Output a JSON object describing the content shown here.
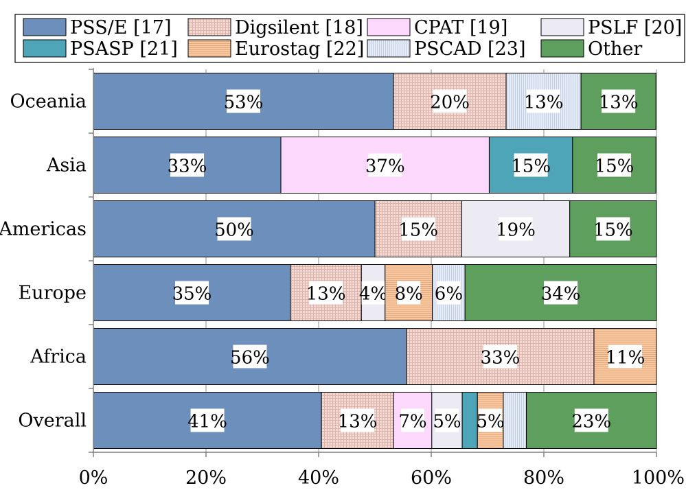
{
  "chart_data": {
    "type": "bar",
    "orientation": "horizontal",
    "stacked": true,
    "title": "",
    "xlabel": "",
    "ylabel": "",
    "xlim": [
      0,
      100
    ],
    "x_ticks": [
      "0%",
      "20%",
      "40%",
      "60%",
      "80%",
      "100%"
    ],
    "grid": "vertical",
    "legend_position": "top",
    "categories": [
      "Oceania",
      "Asia",
      "Americas",
      "Europe",
      "Africa",
      "Overall"
    ],
    "series": [
      {
        "name": "PSS/E [17]",
        "color": "#6d8fbb",
        "pattern": "solid",
        "values": [
          53.3,
          33.3,
          50,
          35,
          55.6,
          40.5
        ]
      },
      {
        "name": "Digsilent [18]",
        "color": "#f4d9d2",
        "pattern": "grid",
        "values": [
          20,
          0,
          15.4,
          12.6,
          33.3,
          12.8
        ]
      },
      {
        "name": "CPAT [19]",
        "color": "#fdd8fd",
        "pattern": "solid",
        "values": [
          0,
          37,
          0,
          0,
          0,
          6.8
        ]
      },
      {
        "name": "PSLF [20]",
        "color": "#ecebf3",
        "pattern": "solid",
        "values": [
          0,
          0,
          19.2,
          4.2,
          0,
          5.4
        ]
      },
      {
        "name": "PSASP [21]",
        "color": "#4ea5b7",
        "pattern": "solid",
        "values": [
          0,
          14.8,
          0,
          0,
          0,
          2.7
        ]
      },
      {
        "name": "Eurostag [22]",
        "color": "#f6c8a2",
        "pattern": "hlines",
        "values": [
          0,
          0,
          0,
          8.4,
          11.1,
          4.6
        ]
      },
      {
        "name": "PSCAD [23]",
        "color": "#e6ecf6",
        "pattern": "vlines",
        "values": [
          13.3,
          0,
          0,
          5.8,
          0,
          4.1
        ]
      },
      {
        "name": "Other",
        "color": "#5e9f5e",
        "pattern": "solid",
        "values": [
          13.3,
          14.8,
          15.4,
          34,
          0,
          23.1
        ]
      }
    ],
    "data_labels": [
      [
        "53%",
        "20%",
        "",
        "",
        "",
        "",
        "13%",
        "13%"
      ],
      [
        "33%",
        "",
        "37%",
        "",
        "15%",
        "",
        "",
        "15%"
      ],
      [
        "50%",
        "15%",
        "",
        "19%",
        "",
        "",
        "",
        "15%"
      ],
      [
        "35%",
        "13%",
        "",
        "4%",
        "",
        "8%",
        "6%",
        "34%"
      ],
      [
        "56%",
        "33%",
        "",
        "",
        "",
        "11%",
        "",
        ""
      ],
      [
        "41%",
        "13%",
        "7%",
        "5%",
        "",
        "5%",
        "",
        "23%"
      ]
    ]
  }
}
